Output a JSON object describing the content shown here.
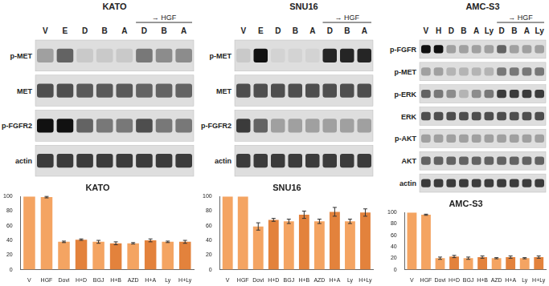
{
  "chart_data": [
    {
      "type": "bar",
      "title": "KATO",
      "categories": [
        "V",
        "HGF",
        "Dovi",
        "H+D",
        "BGJ",
        "H+B",
        "AZD",
        "H+A",
        "Ly",
        "H+Ly"
      ],
      "values": [
        100,
        99,
        38,
        41,
        38,
        36,
        36,
        40,
        38,
        38
      ],
      "errors": [
        0,
        1,
        1,
        1,
        2,
        2,
        1,
        2,
        1,
        2
      ],
      "colors": [
        "#f4a462",
        "#f4a462",
        "#f4a462",
        "#e3823c",
        "#f4a462",
        "#e3823c",
        "#f4a462",
        "#e3823c",
        "#f4a462",
        "#e3823c"
      ],
      "ylim": [
        0,
        100
      ],
      "yticks": [
        0,
        20,
        40,
        60,
        80,
        100
      ],
      "grid": false
    },
    {
      "type": "bar",
      "title": "SNU16",
      "categories": [
        "V",
        "HGF",
        "Dovi",
        "H+D",
        "BGJ",
        "H+B",
        "AZD",
        "H+A",
        "Ly",
        "H+Ly"
      ],
      "values": [
        100,
        100,
        59,
        68,
        66,
        75,
        66,
        79,
        66,
        78
      ],
      "errors": [
        0,
        0,
        5,
        2,
        3,
        5,
        3,
        6,
        3,
        5
      ],
      "colors": [
        "#f4a462",
        "#f4a462",
        "#f4a462",
        "#e3823c",
        "#f4a462",
        "#e3823c",
        "#f4a462",
        "#e3823c",
        "#f4a462",
        "#e3823c"
      ],
      "ylim": [
        0,
        100
      ],
      "yticks": [
        0,
        20,
        40,
        60,
        80,
        100
      ],
      "grid": false
    },
    {
      "type": "bar",
      "title": "AMC-S3",
      "categories": [
        "V",
        "HGF",
        "Dovi",
        "H+D",
        "BGJ",
        "H+B",
        "AZD",
        "H+A",
        "Ly",
        "H+Ly"
      ],
      "values": [
        100,
        96,
        20,
        23,
        20,
        22,
        20,
        22,
        20,
        22
      ],
      "errors": [
        0,
        1,
        2,
        2,
        2,
        2,
        1,
        2,
        1,
        2
      ],
      "colors": [
        "#f4a462",
        "#f4a462",
        "#f4a462",
        "#e3823c",
        "#f4a462",
        "#e3823c",
        "#f4a462",
        "#e3823c",
        "#f4a462",
        "#e3823c"
      ],
      "ylim": [
        0,
        100
      ],
      "yticks": [
        0,
        20,
        40,
        60,
        80,
        100
      ],
      "grid": false
    }
  ],
  "blots": [
    {
      "title": "KATO",
      "lanes": [
        "V",
        "E",
        "D",
        "B",
        "A"
      ],
      "hgf_label": "→ HGF",
      "hgf_lanes": [
        "D",
        "B",
        "A"
      ],
      "rows": [
        {
          "label": "p-MET",
          "intensity": [
            0.3,
            0.6,
            0.1,
            0.1,
            0.1,
            0.5,
            0.4,
            0.4
          ]
        },
        {
          "label": "MET",
          "intensity": [
            0.7,
            0.7,
            0.65,
            0.65,
            0.65,
            0.6,
            0.6,
            0.6
          ]
        },
        {
          "label": "p-FGFR2",
          "intensity": [
            1,
            1,
            0.6,
            0.5,
            0.5,
            0.7,
            0.5,
            0.5
          ]
        },
        {
          "label": "actin",
          "intensity": [
            0.8,
            0.8,
            0.8,
            0.8,
            0.8,
            0.8,
            0.8,
            0.8
          ]
        }
      ]
    },
    {
      "title": "SNU16",
      "lanes": [
        "V",
        "E",
        "D",
        "B",
        "A"
      ],
      "hgf_label": "→ HGF",
      "hgf_lanes": [
        "D",
        "B",
        "A"
      ],
      "rows": [
        {
          "label": "p-MET",
          "intensity": [
            0.1,
            1,
            0.05,
            0.05,
            0.05,
            0.9,
            0.9,
            0.9
          ]
        },
        {
          "label": "MET",
          "intensity": [
            0.7,
            0.7,
            0.7,
            0.7,
            0.7,
            0.7,
            0.7,
            0.7
          ]
        },
        {
          "label": "p-FGFR2",
          "intensity": [
            0.8,
            0.6,
            0.3,
            0.3,
            0.3,
            0.3,
            0.3,
            0.3
          ]
        },
        {
          "label": "actin",
          "intensity": [
            0.8,
            0.8,
            0.8,
            0.8,
            0.8,
            0.8,
            0.8,
            0.8
          ]
        }
      ]
    },
    {
      "title": "AMC-S3",
      "lanes": [
        "V",
        "H",
        "D",
        "B",
        "A",
        "Ly"
      ],
      "hgf_label": "→ HGF",
      "hgf_lanes": [
        "D",
        "B",
        "A",
        "Ly"
      ],
      "rows": [
        {
          "label": "p-FGFR",
          "intensity": [
            1,
            1,
            0.3,
            0.3,
            0.3,
            0.3,
            0.6,
            0.3,
            0.3,
            0.3
          ]
        },
        {
          "label": "p-MET",
          "intensity": [
            0.3,
            0.3,
            0.2,
            0.2,
            0.2,
            0.2,
            0.5,
            0.5,
            0.5,
            0.5
          ]
        },
        {
          "label": "p-ERK",
          "intensity": [
            0.6,
            0.5,
            0.4,
            0.2,
            0.4,
            0.5,
            0.8,
            0.8,
            0.8,
            0.8
          ]
        },
        {
          "label": "ERK",
          "intensity": [
            0.7,
            0.7,
            0.7,
            0.7,
            0.7,
            0.7,
            0.7,
            0.7,
            0.7,
            0.7
          ]
        },
        {
          "label": "p-AKT",
          "intensity": [
            0.3,
            0.3,
            0.3,
            0.3,
            0.3,
            0.3,
            0.3,
            0.3,
            0.3,
            0.3
          ]
        },
        {
          "label": "AKT",
          "intensity": [
            0.6,
            0.6,
            0.6,
            0.6,
            0.6,
            0.6,
            0.6,
            0.6,
            0.6,
            0.6
          ]
        },
        {
          "label": "actin",
          "intensity": [
            0.8,
            0.8,
            0.8,
            0.8,
            0.8,
            0.8,
            0.8,
            0.8,
            0.8,
            0.8
          ]
        }
      ]
    }
  ]
}
